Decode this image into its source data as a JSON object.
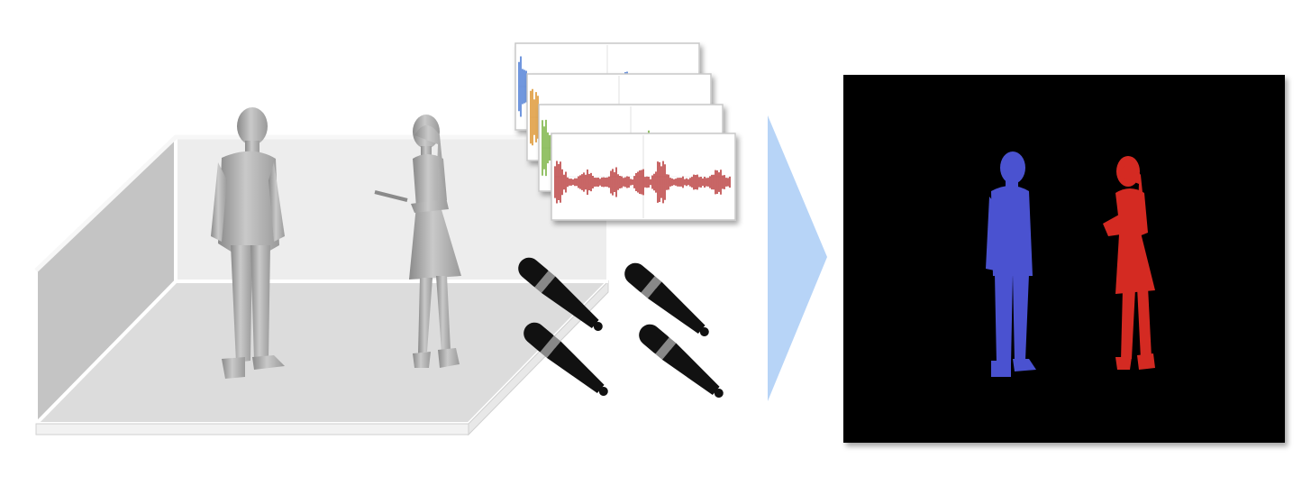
{
  "figure": {
    "scene": {
      "people": [
        {
          "id": "person-man",
          "pose": "standing"
        },
        {
          "id": "person-woman",
          "pose": "standing-holding-tablet"
        }
      ]
    },
    "audio": {
      "waveforms": [
        {
          "id": "waveform-1",
          "color": "#3a6fd1"
        },
        {
          "id": "waveform-2",
          "color": "#d98a1a"
        },
        {
          "id": "waveform-3",
          "color": "#6aaa2e"
        },
        {
          "id": "waveform-4",
          "color": "#b42a2a"
        }
      ],
      "microphone_count": 4,
      "microphone_icon": "microphone-icon"
    },
    "arrow": {
      "color": "#b7d4f7",
      "icon": "arrow-right-icon"
    },
    "output": {
      "background": "#000000",
      "silhouettes": [
        {
          "id": "silhouette-man",
          "color": "#4a52d0"
        },
        {
          "id": "silhouette-woman",
          "color": "#d42a22"
        }
      ]
    }
  }
}
